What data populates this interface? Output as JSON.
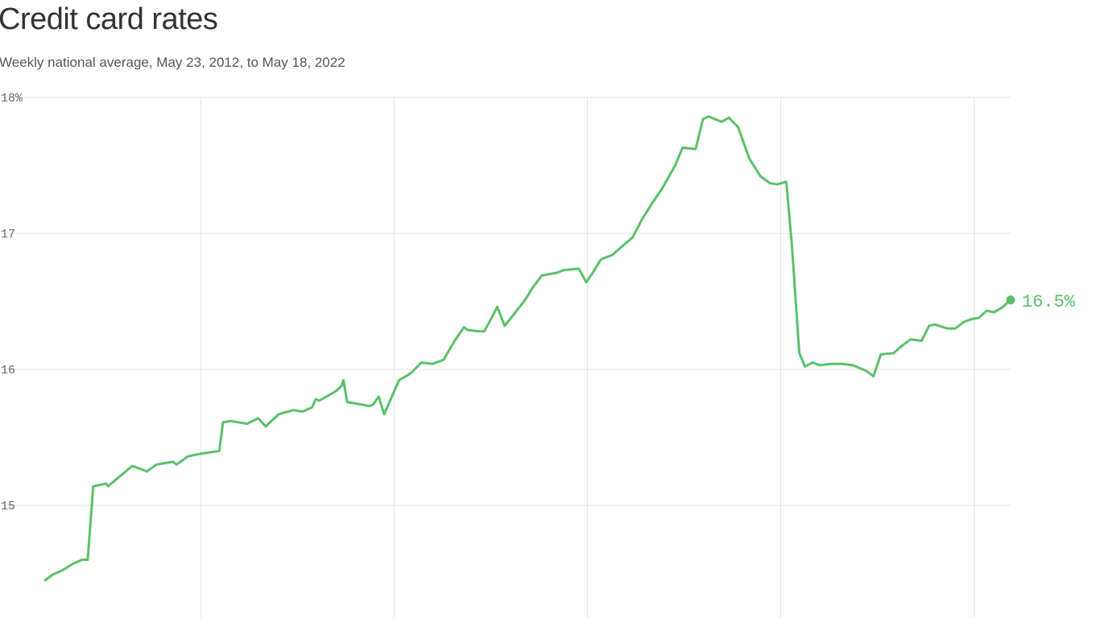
{
  "header": {
    "title": "Credit card rates",
    "subtitle": "Weekly national average, May 23, 2012, to May 18, 2022"
  },
  "chart_data": {
    "type": "line",
    "title": "Credit card rates",
    "subtitle": "Weekly national average, May 23, 2012, to May 18, 2022",
    "xlabel": "",
    "ylabel": "",
    "x_range": [
      "2012-05-23",
      "2022-05-18"
    ],
    "ylim": [
      14.0,
      18.0
    ],
    "y_ticks": [
      {
        "value": 18,
        "label": "18%"
      },
      {
        "value": 17,
        "label": "17"
      },
      {
        "value": 16,
        "label": "16"
      },
      {
        "value": 15,
        "label": "15"
      }
    ],
    "x_gridlines": [
      "2014-01-01",
      "2016-01-01",
      "2018-01-01",
      "2020-01-01",
      "2022-01-01"
    ],
    "x_tick_labels": [],
    "grid": true,
    "line_color": "#5bbf6a",
    "end_label": "16.5%",
    "series": [
      {
        "x": [
          "2012-05-23",
          "2012-06-20",
          "2012-07-25",
          "2012-09-05",
          "2012-10-10",
          "2012-10-31",
          "2012-11-21",
          "2013-01-09",
          "2013-01-16",
          "2013-04-17",
          "2013-06-12",
          "2013-07-17",
          "2013-09-18",
          "2013-10-02",
          "2013-11-13",
          "2014-01-01",
          "2014-03-12",
          "2014-03-26",
          "2014-04-23",
          "2014-06-25",
          "2014-08-06",
          "2014-09-03",
          "2014-10-22",
          "2014-12-17",
          "2015-01-21",
          "2015-02-25",
          "2015-03-11",
          "2015-03-25",
          "2015-05-27",
          "2015-06-17",
          "2015-06-24",
          "2015-07-08",
          "2015-09-02",
          "2015-09-30",
          "2015-10-14",
          "2015-11-04",
          "2015-11-25",
          "2016-01-13",
          "2016-01-20",
          "2016-02-24",
          "2016-03-09",
          "2016-04-13",
          "2016-05-25",
          "2016-07-06",
          "2016-08-17",
          "2016-09-21",
          "2016-10-05",
          "2016-11-16",
          "2016-12-07",
          "2017-01-04",
          "2017-01-25",
          "2017-02-22",
          "2017-04-12",
          "2017-05-10",
          "2017-06-07",
          "2017-07-12",
          "2017-09-06",
          "2017-10-04",
          "2017-11-29",
          "2017-12-27",
          "2018-01-24",
          "2018-02-21",
          "2018-04-04",
          "2018-05-09",
          "2018-06-20",
          "2018-07-25",
          "2018-09-05",
          "2018-10-10",
          "2018-11-28",
          "2018-12-26",
          "2019-02-13",
          "2019-03-13",
          "2019-04-03",
          "2019-05-22",
          "2019-06-19",
          "2019-07-24",
          "2019-09-04",
          "2019-10-16",
          "2019-11-20",
          "2019-12-18",
          "2020-01-22",
          "2020-02-12",
          "2020-03-11",
          "2020-04-01",
          "2020-04-29",
          "2020-05-27",
          "2020-07-08",
          "2020-08-19",
          "2020-09-30",
          "2020-11-18",
          "2020-12-16",
          "2021-01-13",
          "2021-03-03",
          "2021-03-31",
          "2021-05-05",
          "2021-06-16",
          "2021-07-14",
          "2021-08-04",
          "2021-09-22",
          "2021-10-20",
          "2021-11-24",
          "2021-12-22",
          "2022-01-19",
          "2022-02-16",
          "2022-03-16",
          "2022-04-13",
          "2022-05-18"
        ],
        "values": [
          14.45,
          14.49,
          14.52,
          14.57,
          14.6,
          14.6,
          15.14,
          15.16,
          15.14,
          15.29,
          15.25,
          15.3,
          15.32,
          15.3,
          15.36,
          15.38,
          15.4,
          15.61,
          15.62,
          15.6,
          15.64,
          15.58,
          15.67,
          15.7,
          15.69,
          15.72,
          15.78,
          15.77,
          15.84,
          15.88,
          15.92,
          15.76,
          15.74,
          15.73,
          15.74,
          15.8,
          15.67,
          15.89,
          15.92,
          15.96,
          15.98,
          16.05,
          16.04,
          16.07,
          16.21,
          16.31,
          16.29,
          16.28,
          16.28,
          16.38,
          16.46,
          16.32,
          16.44,
          16.51,
          16.6,
          16.69,
          16.71,
          16.73,
          16.74,
          16.64,
          16.72,
          16.81,
          16.84,
          16.9,
          16.97,
          17.1,
          17.23,
          17.33,
          17.5,
          17.63,
          17.62,
          17.84,
          17.86,
          17.82,
          17.85,
          17.78,
          17.55,
          17.42,
          17.37,
          17.36,
          17.38,
          16.91,
          16.12,
          16.02,
          16.05,
          16.03,
          16.04,
          16.04,
          16.03,
          15.99,
          15.95,
          16.11,
          16.12,
          16.17,
          16.22,
          16.21,
          16.32,
          16.33,
          16.3,
          16.3,
          16.35,
          16.37,
          16.38,
          16.43,
          16.42,
          16.45,
          16.51
        ]
      }
    ]
  }
}
